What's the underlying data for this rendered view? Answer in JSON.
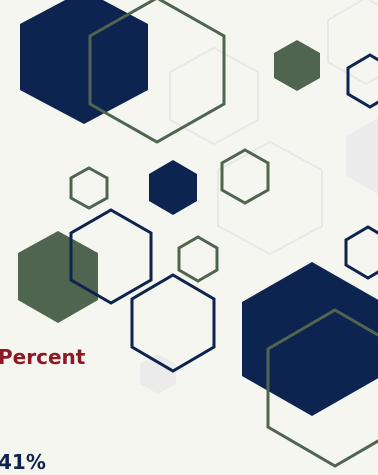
{
  "heading_text": "Percent",
  "value_text": "41%",
  "colors": {
    "background": "#f6f6f0",
    "navy": "#0d2350",
    "green": "#4f654f",
    "light_gray": "#ebebeb",
    "heading": "#8b1a24"
  }
}
